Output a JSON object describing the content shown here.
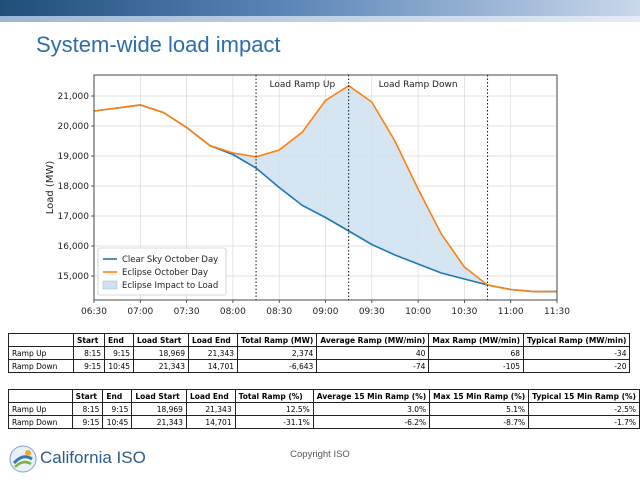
{
  "page": {
    "title": "System-wide load impact",
    "brand": "California ISO",
    "copyright": "Copyright ISO"
  },
  "colors": {
    "clear": "#1f77b4",
    "eclipse": "#ff7f0e",
    "fill": "#cfe0f0",
    "title": "#2b6cb0"
  },
  "chart_data": {
    "type": "line",
    "ylabel": "Load (MW)",
    "xlabel": "",
    "x_ticks": [
      "06:30",
      "07:00",
      "07:30",
      "08:00",
      "08:30",
      "09:00",
      "09:30",
      "10:00",
      "10:30",
      "11:00",
      "11:30"
    ],
    "y_ticks": [
      15000,
      16000,
      17000,
      18000,
      19000,
      20000,
      21000
    ],
    "y_tick_labels": [
      "15,000",
      "16,000",
      "17,000",
      "18,000",
      "19,000",
      "20,000",
      "21,000"
    ],
    "xlim_min": [
      390,
      690
    ],
    "ylim": [
      14200,
      21700
    ],
    "annotations": [
      {
        "label": "Load Ramp Up",
        "start_min": 495,
        "end_min": 555
      },
      {
        "label": "Load Ramp Down",
        "start_min": 555,
        "end_min": 645
      }
    ],
    "vlines_min": [
      495,
      555,
      645
    ],
    "legend": [
      "Clear Sky October Day",
      "Eclipse October Day",
      "Eclipse Impact to Load"
    ],
    "legend_position": "lower-left",
    "series": [
      {
        "name": "Clear Sky October Day",
        "x_min": [
          390,
          405,
          420,
          435,
          450,
          465,
          480,
          495,
          510,
          525,
          540,
          555,
          570,
          585,
          600,
          615,
          630,
          645,
          660,
          675,
          690
        ],
        "values": [
          20500,
          20600,
          20700,
          20450,
          19950,
          19350,
          19050,
          18600,
          17950,
          17350,
          16950,
          16500,
          16050,
          15700,
          15400,
          15100,
          14900,
          14700,
          14550,
          14480,
          14480
        ]
      },
      {
        "name": "Eclipse October Day",
        "x_min": [
          390,
          405,
          420,
          435,
          450,
          465,
          480,
          495,
          510,
          525,
          540,
          555,
          570,
          585,
          600,
          615,
          630,
          645,
          660,
          675,
          690
        ],
        "values": [
          20500,
          20600,
          20700,
          20450,
          19950,
          19350,
          19100,
          18969,
          19200,
          19800,
          20850,
          21343,
          20800,
          19500,
          17900,
          16400,
          15300,
          14701,
          14550,
          14480,
          14480
        ]
      }
    ]
  },
  "table1": {
    "headers": [
      "",
      "Start",
      "End",
      "Load Start",
      "Load End",
      "Total Ramp (MW)",
      "Average Ramp (MW/min)",
      "Max Ramp (MW/min)",
      "Typical Ramp (MW/min)"
    ],
    "rows": [
      [
        "Ramp Up",
        "8:15",
        "9:15",
        "18,969",
        "21,343",
        "2,374",
        "40",
        "68",
        "-34"
      ],
      [
        "Ramp Down",
        "9:15",
        "10:45",
        "21,343",
        "14,701",
        "-6,643",
        "-74",
        "-105",
        "-20"
      ]
    ]
  },
  "table2": {
    "headers": [
      "",
      "Start",
      "End",
      "Load Start",
      "Load End",
      "Total Ramp (%)",
      "Average 15 Min Ramp (%)",
      "Max 15 Min Ramp (%)",
      "Typical 15 Min Ramp (%)"
    ],
    "rows": [
      [
        "Ramp Up",
        "8:15",
        "9:15",
        "18,969",
        "21,343",
        "12.5%",
        "3.0%",
        "5.1%",
        "-2.5%"
      ],
      [
        "Ramp Down",
        "9:15",
        "10:45",
        "21,343",
        "14,701",
        "-31.1%",
        "-6.2%",
        "-8.7%",
        "-1.7%"
      ]
    ]
  }
}
